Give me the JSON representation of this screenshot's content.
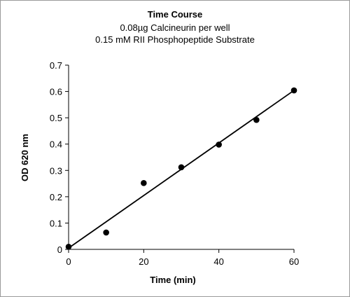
{
  "chart_data": {
    "type": "scatter",
    "title": "Time Course",
    "subtitle_lines": [
      "0.08µg Calcineurin per well",
      "0.15 mM RII Phosphopeptide Substrate"
    ],
    "xlabel": "Time (min)",
    "ylabel": "OD 620 nm",
    "xlim": [
      0,
      60
    ],
    "ylim": [
      0,
      0.7
    ],
    "x_ticks": [
      0,
      20,
      40,
      60
    ],
    "y_ticks": [
      0,
      0.1,
      0.2,
      0.3,
      0.4,
      0.5,
      0.6,
      0.7
    ],
    "grid": false,
    "legend": false,
    "series": [
      {
        "points": [
          {
            "x": 0,
            "y": 0.01
          },
          {
            "x": 10,
            "y": 0.064
          },
          {
            "x": 20,
            "y": 0.252
          },
          {
            "x": 30,
            "y": 0.312
          },
          {
            "x": 40,
            "y": 0.398
          },
          {
            "x": 50,
            "y": 0.492
          },
          {
            "x": 60,
            "y": 0.604
          }
        ],
        "marker_color": "#000000"
      }
    ],
    "trendline": {
      "x0": 0,
      "y0": 0.005,
      "x1": 60,
      "y1": 0.604,
      "color": "#000000"
    }
  }
}
